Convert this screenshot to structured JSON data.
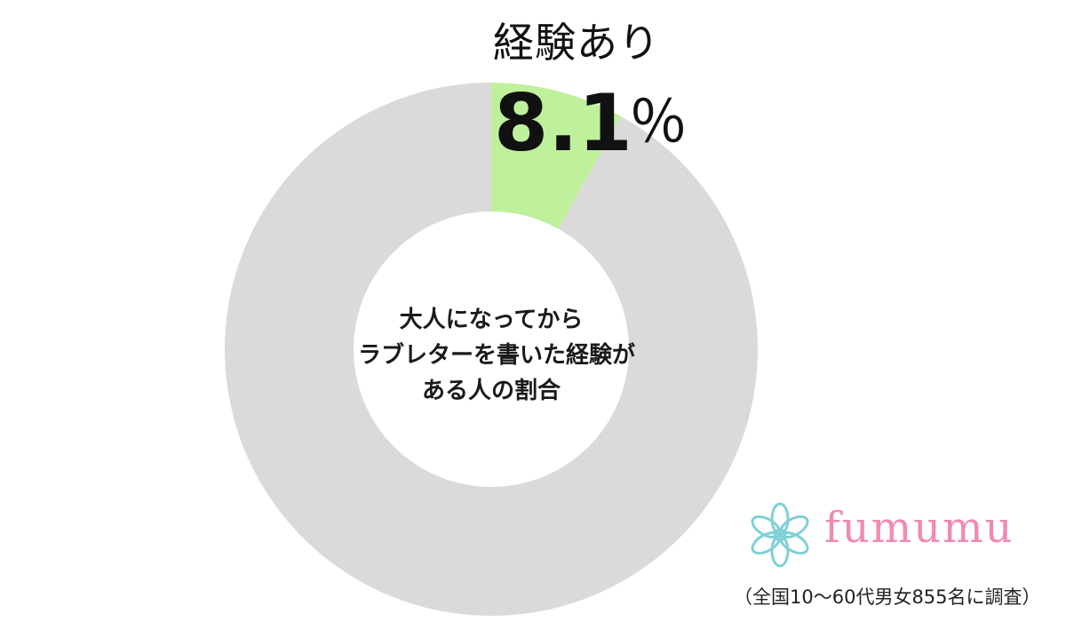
{
  "chart_data": {
    "type": "pie",
    "title": "",
    "center_label": [
      "大人になってから",
      "ラブレターを書いた経験が",
      "ある人の割合"
    ],
    "slices": [
      {
        "label": "経験あり",
        "value": 8.1,
        "color": "#bff09b"
      },
      {
        "label": "",
        "value": 91.9,
        "color": "#dadada"
      }
    ],
    "value_label": {
      "value": "8.1",
      "unit": "％"
    },
    "legend": "none",
    "style": "donut"
  },
  "brand": {
    "name": "fumumu",
    "icon": "flower-logo-icon",
    "text_color": "#f08ab4",
    "icon_color": "#7fd0d6"
  },
  "footnote": "（全国10～60代男女855名に調査）"
}
